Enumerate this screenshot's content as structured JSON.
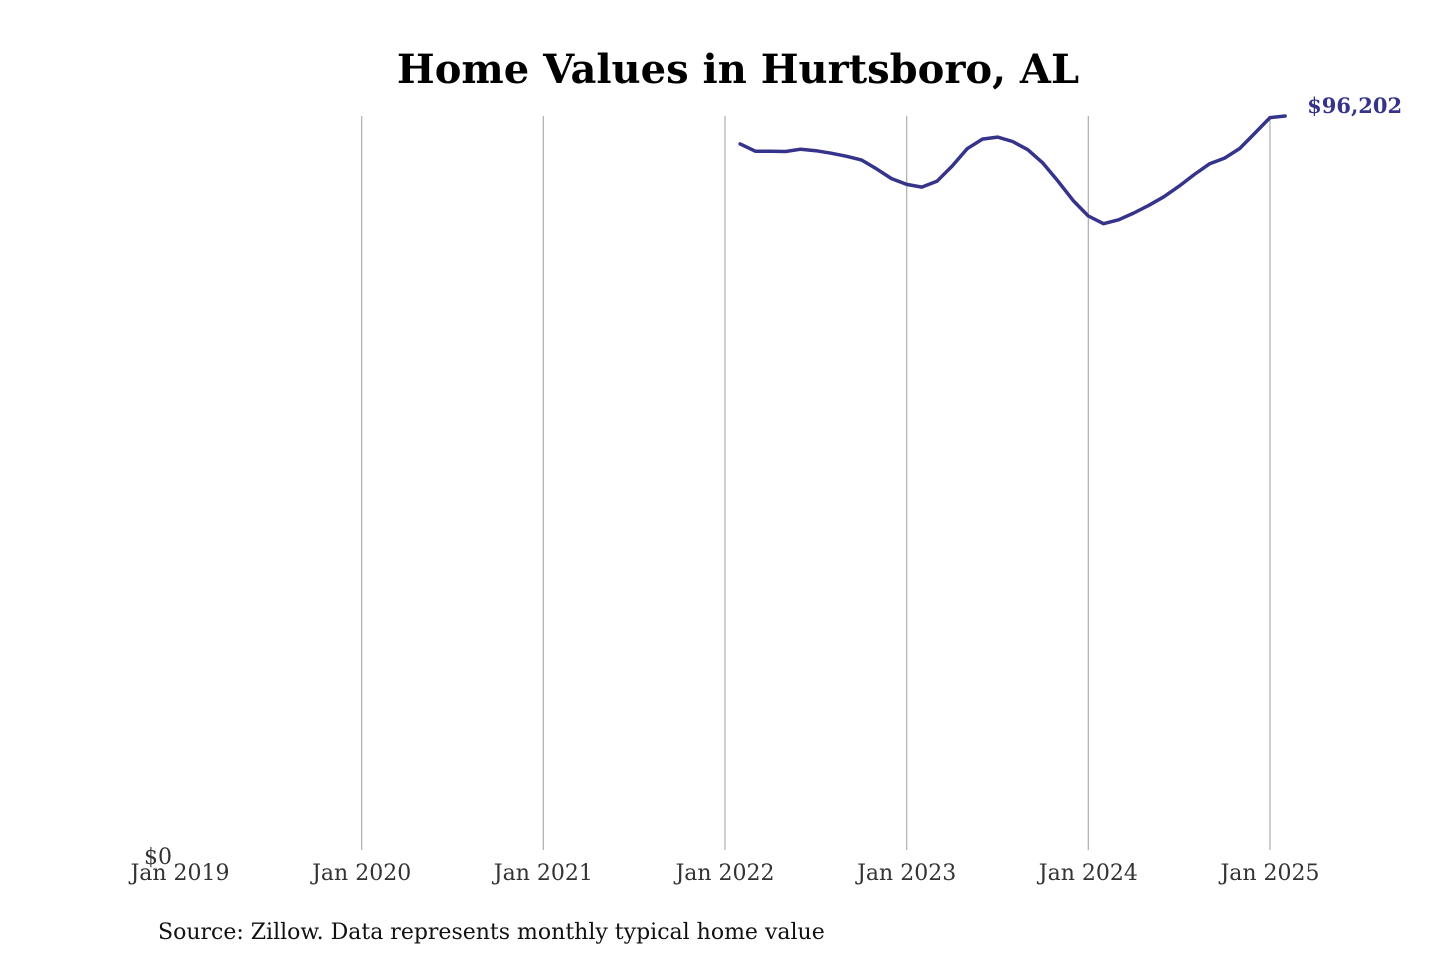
{
  "chart_data": {
    "type": "line",
    "title": "Home Values in Hurtsboro, AL",
    "xlabel": "",
    "ylabel": "",
    "ylim": [
      0,
      96202
    ],
    "y_ticks": [
      0
    ],
    "y_tick_labels": [
      "$0"
    ],
    "x_ticks": [
      "2019-01",
      "2020-01",
      "2021-01",
      "2022-01",
      "2023-01",
      "2024-01",
      "2025-01"
    ],
    "x_tick_labels": [
      "Jan 2019",
      "Jan 2020",
      "Jan 2021",
      "Jan 2022",
      "Jan 2023",
      "Jan 2024",
      "Jan 2025"
    ],
    "xlim": [
      "2019-01",
      "2025-01"
    ],
    "grid": "vertical",
    "series": [
      {
        "color": "#35338a",
        "end_label": "$96,202",
        "points": [
          {
            "x": "2022-02",
            "y": 92550
          },
          {
            "x": "2022-03",
            "y": 91590
          },
          {
            "x": "2022-04",
            "y": 91590
          },
          {
            "x": "2022-05",
            "y": 91550
          },
          {
            "x": "2022-06",
            "y": 91850
          },
          {
            "x": "2022-07",
            "y": 91650
          },
          {
            "x": "2022-08",
            "y": 91320
          },
          {
            "x": "2022-09",
            "y": 90930
          },
          {
            "x": "2022-10",
            "y": 90450
          },
          {
            "x": "2022-11",
            "y": 89280
          },
          {
            "x": "2022-12",
            "y": 88000
          },
          {
            "x": "2023-01",
            "y": 87240
          },
          {
            "x": "2023-02",
            "y": 86880
          },
          {
            "x": "2023-03",
            "y": 87640
          },
          {
            "x": "2023-04",
            "y": 89640
          },
          {
            "x": "2023-05",
            "y": 91920
          },
          {
            "x": "2023-06",
            "y": 93180
          },
          {
            "x": "2023-07",
            "y": 93430
          },
          {
            "x": "2023-08",
            "y": 92860
          },
          {
            "x": "2023-09",
            "y": 91790
          },
          {
            "x": "2023-10",
            "y": 90030
          },
          {
            "x": "2023-11",
            "y": 87640
          },
          {
            "x": "2023-12",
            "y": 85120
          },
          {
            "x": "2024-01",
            "y": 83100
          },
          {
            "x": "2024-02",
            "y": 82090
          },
          {
            "x": "2024-03",
            "y": 82600
          },
          {
            "x": "2024-04",
            "y": 83490
          },
          {
            "x": "2024-05",
            "y": 84500
          },
          {
            "x": "2024-06",
            "y": 85630
          },
          {
            "x": "2024-07",
            "y": 87020
          },
          {
            "x": "2024-08",
            "y": 88530
          },
          {
            "x": "2024-09",
            "y": 89920
          },
          {
            "x": "2024-10",
            "y": 90680
          },
          {
            "x": "2024-11",
            "y": 91940
          },
          {
            "x": "2024-12",
            "y": 93960
          },
          {
            "x": "2025-01",
            "y": 95990
          },
          {
            "x": "2025-02",
            "y": 96202
          }
        ]
      }
    ]
  },
  "footer": {
    "source": "Source: Zillow. Data represents monthly typical home value"
  }
}
